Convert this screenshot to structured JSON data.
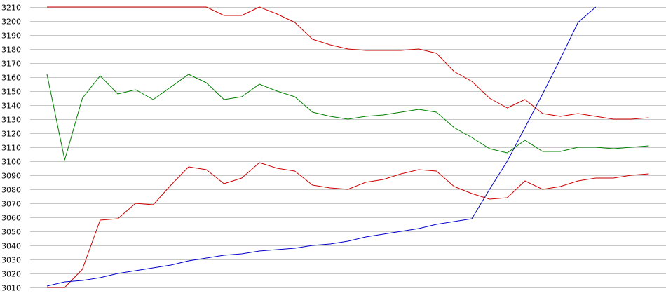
{
  "chart_data": {
    "type": "line",
    "title": "",
    "xlabel": "",
    "ylabel": "",
    "grid": true,
    "legend": "none",
    "ylim": [
      3010,
      3210
    ],
    "yticks": [
      3010,
      3020,
      3030,
      3040,
      3050,
      3060,
      3070,
      3080,
      3090,
      3100,
      3110,
      3120,
      3130,
      3140,
      3150,
      3160,
      3170,
      3180,
      3190,
      3200,
      3210
    ],
    "x": [
      1,
      2,
      3,
      4,
      5,
      6,
      7,
      8,
      9,
      10,
      11,
      12,
      13,
      14,
      15,
      16,
      17,
      18,
      19,
      20,
      21,
      22,
      23,
      24,
      25,
      26,
      27,
      28,
      29,
      30,
      31,
      32,
      33,
      34,
      35,
      36,
      37
    ],
    "xlim": [
      1,
      37
    ],
    "series": [
      {
        "color": "#cc0000",
        "values": [
          3210,
          3210,
          3210,
          3210,
          3210,
          3210,
          3210,
          3210,
          3210,
          3210,
          3204,
          3204,
          3210,
          3205,
          3199,
          3187,
          3183,
          3180,
          3179,
          3179,
          3179,
          3180,
          3177,
          3164,
          3157,
          3145,
          3138,
          3144,
          3134,
          3132,
          3134,
          3132,
          3130,
          3130,
          3131,
          null,
          null
        ]
      },
      {
        "color": "#008000",
        "values": [
          3162,
          3101,
          3145,
          3161,
          3148,
          3151,
          3144,
          3153,
          3162,
          3156,
          3144,
          3146,
          3155,
          3150,
          3146,
          3135,
          3132,
          3130,
          3132,
          3133,
          3135,
          3137,
          3135,
          3124,
          3117,
          3109,
          3106,
          3115,
          3107,
          3107,
          3110,
          3110,
          3109,
          3110,
          3111,
          null,
          null
        ]
      },
      {
        "color": "#cc0000",
        "values": [
          3010,
          3010,
          3023,
          3058,
          3059,
          3070,
          3069,
          3083,
          3096,
          3094,
          3084,
          3088,
          3099,
          3095,
          3093,
          3083,
          3081,
          3080,
          3085,
          3087,
          3091,
          3094,
          3093,
          3082,
          3077,
          3073,
          3074,
          3086,
          3080,
          3082,
          3086,
          3088,
          3088,
          3090,
          3091,
          null,
          null
        ]
      },
      {
        "color": "#0000cc",
        "values": [
          3011,
          3014,
          3015,
          3017,
          3020,
          3022,
          3024,
          3026,
          3029,
          3031,
          3033,
          3034,
          3036,
          3037,
          3038,
          3040,
          3041,
          3043,
          3046,
          3048,
          3050,
          3052,
          3055,
          3057,
          3059,
          3080,
          3100,
          3124,
          3148,
          3173,
          3199,
          3210,
          null,
          null,
          null,
          null,
          null
        ]
      }
    ]
  }
}
